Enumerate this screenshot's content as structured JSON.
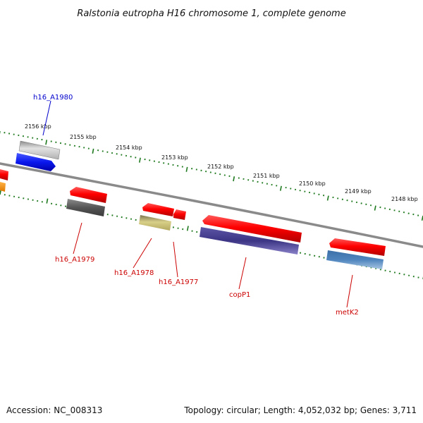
{
  "title": "Ralstonia eutropha H16 chromosome 1, complete genome",
  "footer": {
    "accession": "Accession: NC_008313",
    "summary": "Topology: circular; Length: 4,052,032 bp; Genes: 3,711"
  },
  "ticks": [
    "2156 kbp",
    "2155 kbp",
    "2154 kbp",
    "2153 kbp",
    "2152 kbp",
    "2151 kbp",
    "2150 kbp",
    "2149 kbp",
    "2148 kbp"
  ],
  "gene_labels": [
    "h16_A1980",
    "h16_A1979",
    "h16_A1978",
    "h16_A1977",
    "copP1",
    "metK2"
  ],
  "colors": {
    "backbone": "#8a8a8a",
    "tick": "#1f7a1f",
    "gene_red": "#ee0000",
    "label_red": "#cc0000",
    "label_blue": "#0000cc"
  }
}
